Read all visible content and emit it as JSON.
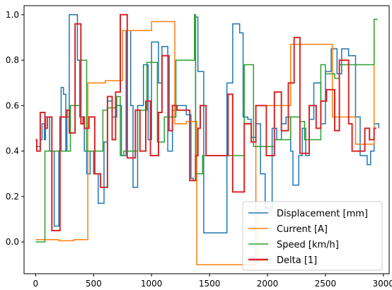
{
  "chart_data": {
    "type": "line",
    "title": "",
    "xlabel": "",
    "ylabel": "",
    "xlim": [
      -100,
      3050
    ],
    "ylim": [
      -0.14,
      1.04
    ],
    "xticks": [
      0,
      500,
      1000,
      1500,
      2000,
      2500,
      3000
    ],
    "yticks": [
      0.0,
      0.2,
      0.4,
      0.6,
      0.8,
      1.0
    ],
    "xtick_labels": [
      "0",
      "500",
      "1000",
      "1500",
      "2000",
      "2500",
      "3000"
    ],
    "ytick_labels": [
      "0.0",
      "0.2",
      "0.4",
      "0.6",
      "0.8",
      "1.0"
    ],
    "grid": false,
    "legend_position": "bottom-right",
    "series": [
      {
        "name": "Displacement [mm]",
        "color": "#1f77b4",
        "steps": [
          [
            0,
            0.42
          ],
          [
            40,
            0.45
          ],
          [
            55,
            0.52
          ],
          [
            75,
            0.45
          ],
          [
            85,
            0.55
          ],
          [
            120,
            0.4
          ],
          [
            160,
            0.07
          ],
          [
            200,
            0.4
          ],
          [
            220,
            0.68
          ],
          [
            240,
            0.65
          ],
          [
            260,
            0.4
          ],
          [
            270,
            0.55
          ],
          [
            290,
            1.0
          ],
          [
            360,
            0.8
          ],
          [
            380,
            0.55
          ],
          [
            420,
            0.4
          ],
          [
            440,
            0.3
          ],
          [
            470,
            0.4
          ],
          [
            490,
            0.4
          ],
          [
            500,
            0.3
          ],
          [
            540,
            0.17
          ],
          [
            590,
            0.44
          ],
          [
            620,
            0.62
          ],
          [
            660,
            0.55
          ],
          [
            700,
            0.6
          ],
          [
            740,
            0.38
          ],
          [
            780,
            0.93
          ],
          [
            820,
            0.6
          ],
          [
            840,
            0.24
          ],
          [
            880,
            0.6
          ],
          [
            930,
            0.78
          ],
          [
            970,
            0.45
          ],
          [
            1000,
            0.88
          ],
          [
            1060,
            0.7
          ],
          [
            1090,
            0.86
          ],
          [
            1140,
            0.4
          ],
          [
            1180,
            0.58
          ],
          [
            1220,
            0.6
          ],
          [
            1300,
            0.56
          ],
          [
            1340,
            0.28
          ],
          [
            1360,
            0.27
          ],
          [
            1380,
            0.99
          ],
          [
            1400,
            0.75
          ],
          [
            1450,
            0.04
          ],
          [
            1650,
            0.7
          ],
          [
            1700,
            0.96
          ],
          [
            1760,
            0.92
          ],
          [
            1790,
            0.55
          ],
          [
            1830,
            0.54
          ],
          [
            1860,
            0.46
          ],
          [
            1900,
            0.52
          ],
          [
            1940,
            0.3
          ],
          [
            1980,
            0.15
          ],
          [
            2040,
            0.5
          ],
          [
            2080,
            0.45
          ],
          [
            2120,
            0.52
          ],
          [
            2160,
            0.55
          ],
          [
            2200,
            0.4
          ],
          [
            2220,
            0.25
          ],
          [
            2270,
            0.38
          ],
          [
            2300,
            0.5
          ],
          [
            2330,
            0.38
          ],
          [
            2360,
            0.54
          ],
          [
            2400,
            0.7
          ],
          [
            2460,
            0.52
          ],
          [
            2500,
            0.75
          ],
          [
            2550,
            0.85
          ],
          [
            2600,
            0.74
          ],
          [
            2640,
            0.85
          ],
          [
            2700,
            0.82
          ],
          [
            2760,
            0.55
          ],
          [
            2800,
            0.38
          ],
          [
            2860,
            0.34
          ],
          [
            2890,
            0.4
          ],
          [
            2920,
            0.52
          ],
          [
            2960,
            0.5
          ]
        ]
      },
      {
        "name": "Current [A]",
        "color": "#ff7f0e",
        "steps": [
          [
            0,
            0.01
          ],
          [
            200,
            0.005
          ],
          [
            330,
            0.01
          ],
          [
            450,
            0.7
          ],
          [
            600,
            0.71
          ],
          [
            750,
            0.93
          ],
          [
            1000,
            0.97
          ],
          [
            1200,
            0.52
          ],
          [
            1300,
            0.53
          ],
          [
            1390,
            -0.1
          ],
          [
            1900,
            0.6
          ],
          [
            2200,
            0.87
          ],
          [
            2560,
            0.55
          ],
          [
            2760,
            0.43
          ],
          [
            2920,
            0.89
          ]
        ]
      },
      {
        "name": "Speed [km/h]",
        "color": "#2ca02c",
        "steps": [
          [
            0,
            0.0
          ],
          [
            80,
            0.4
          ],
          [
            300,
            0.6
          ],
          [
            390,
            0.8
          ],
          [
            440,
            0.4
          ],
          [
            580,
            0.58
          ],
          [
            620,
            0.59
          ],
          [
            700,
            0.64
          ],
          [
            730,
            0.38
          ],
          [
            760,
            0.4
          ],
          [
            880,
            0.58
          ],
          [
            960,
            0.79
          ],
          [
            1050,
            0.44
          ],
          [
            1110,
            0.55
          ],
          [
            1210,
            0.8
          ],
          [
            1370,
            1.0
          ],
          [
            1380,
            0.3
          ],
          [
            1400,
            0.3
          ],
          [
            1440,
            0.38
          ],
          [
            1800,
            0.78
          ],
          [
            1880,
            0.42
          ],
          [
            2060,
            0.45
          ],
          [
            2200,
            0.55
          ],
          [
            2280,
            0.53
          ],
          [
            2320,
            0.45
          ],
          [
            2460,
            0.78
          ],
          [
            2500,
            0.74
          ],
          [
            2580,
            0.72
          ],
          [
            2620,
            0.78
          ],
          [
            2920,
            0.98
          ],
          [
            2950,
            0.98
          ]
        ]
      },
      {
        "name": "Delta [1]",
        "color": "#d62728",
        "steps": [
          [
            0,
            0.45
          ],
          [
            10,
            0.4
          ],
          [
            40,
            0.57
          ],
          [
            80,
            0.5
          ],
          [
            100,
            0.55
          ],
          [
            140,
            0.05
          ],
          [
            210,
            0.55
          ],
          [
            250,
            0.55
          ],
          [
            270,
            0.58
          ],
          [
            290,
            0.48
          ],
          [
            340,
            0.96
          ],
          [
            390,
            0.52
          ],
          [
            410,
            0.55
          ],
          [
            420,
            0.5
          ],
          [
            460,
            0.55
          ],
          [
            510,
            0.3
          ],
          [
            560,
            0.24
          ],
          [
            620,
            0.64
          ],
          [
            660,
            0.45
          ],
          [
            690,
            0.66
          ],
          [
            730,
            1.0
          ],
          [
            790,
            0.37
          ],
          [
            860,
            0.58
          ],
          [
            900,
            0.4
          ],
          [
            950,
            0.62
          ],
          [
            990,
            0.38
          ],
          [
            1060,
            0.57
          ],
          [
            1090,
            0.82
          ],
          [
            1150,
            0.49
          ],
          [
            1180,
            0.6
          ],
          [
            1220,
            0.58
          ],
          [
            1260,
            0.58
          ],
          [
            1330,
            0.27
          ],
          [
            1380,
            0.38
          ],
          [
            1400,
            0.5
          ],
          [
            1420,
            0.6
          ],
          [
            1470,
            0.38
          ],
          [
            1660,
            0.65
          ],
          [
            1700,
            0.22
          ],
          [
            1800,
            0.52
          ],
          [
            1860,
            0.44
          ],
          [
            1900,
            0.6
          ],
          [
            1960,
            0.6
          ],
          [
            1990,
            0.38
          ],
          [
            2060,
            0.66
          ],
          [
            2120,
            0.49
          ],
          [
            2180,
            0.7
          ],
          [
            2230,
            0.9
          ],
          [
            2280,
            0.39
          ],
          [
            2360,
            0.6
          ],
          [
            2420,
            0.5
          ],
          [
            2460,
            0.62
          ],
          [
            2510,
            0.67
          ],
          [
            2580,
            0.49
          ],
          [
            2620,
            0.8
          ],
          [
            2700,
            0.52
          ],
          [
            2730,
            0.4
          ],
          [
            2800,
            0.4
          ],
          [
            2840,
            0.5
          ],
          [
            2880,
            0.45
          ],
          [
            2920,
            0.5
          ],
          [
            2940,
            0.5
          ]
        ]
      }
    ]
  }
}
